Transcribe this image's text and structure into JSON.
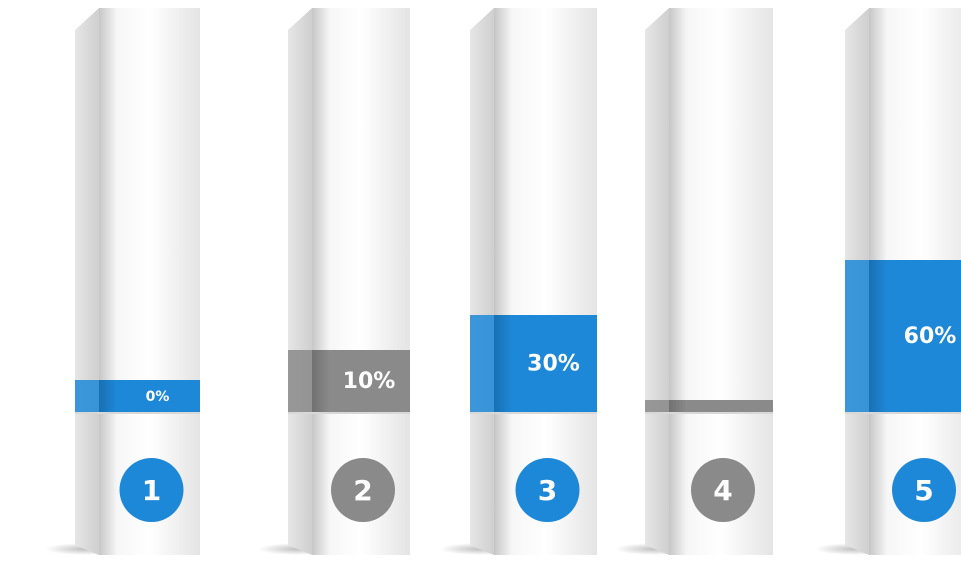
{
  "pillars": [
    {
      "number": "1",
      "label": "0%",
      "color": "#1e88d8"
    },
    {
      "number": "2",
      "label": "10%",
      "color": "#8a8a8a"
    },
    {
      "number": "3",
      "label": "30%",
      "color": "#1e88d8"
    },
    {
      "number": "4",
      "color": "#8a8a8a"
    },
    {
      "number": "5",
      "label": "60%",
      "color": "#1e88d8"
    }
  ]
}
